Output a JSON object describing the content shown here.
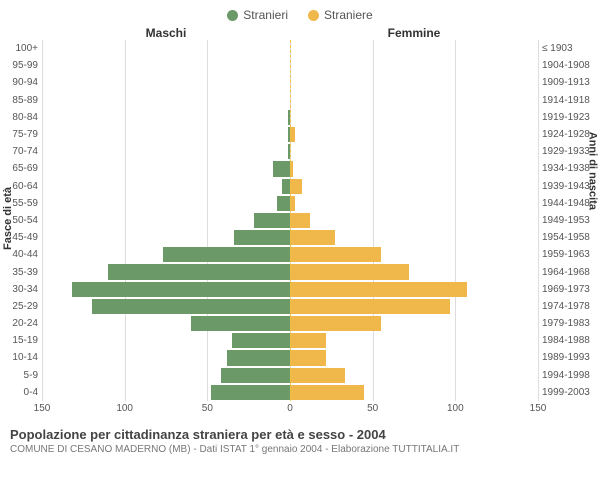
{
  "legend": {
    "male": {
      "label": "Stranieri",
      "color": "#6b9967"
    },
    "female": {
      "label": "Straniere",
      "color": "#f0b84a"
    }
  },
  "columns": {
    "left": "Maschi",
    "right": "Femmine"
  },
  "axes": {
    "left_label": "Fasce di età",
    "right_label": "Anni di nascita",
    "xlim_left": 150,
    "xlim_right": 150,
    "xticks_left": [
      150,
      100,
      50,
      0
    ],
    "xticks_right": [
      0,
      50,
      100,
      150
    ],
    "grid_color": "#dddddd",
    "center_line_color": "#ecc23f",
    "background_color": "#ffffff"
  },
  "chart": {
    "type": "population-pyramid",
    "bar_color_left": "#6b9967",
    "bar_color_right": "#f0b84a",
    "font_size_labels": 10
  },
  "rows": [
    {
      "age": "100+",
      "birth": "≤ 1903",
      "m": 0,
      "f": 0
    },
    {
      "age": "95-99",
      "birth": "1904-1908",
      "m": 0,
      "f": 0
    },
    {
      "age": "90-94",
      "birth": "1909-1913",
      "m": 0,
      "f": 0
    },
    {
      "age": "85-89",
      "birth": "1914-1918",
      "m": 0,
      "f": 0
    },
    {
      "age": "80-84",
      "birth": "1919-1923",
      "m": 1,
      "f": 0
    },
    {
      "age": "75-79",
      "birth": "1924-1928",
      "m": 1,
      "f": 3
    },
    {
      "age": "70-74",
      "birth": "1929-1933",
      "m": 1,
      "f": 0
    },
    {
      "age": "65-69",
      "birth": "1934-1938",
      "m": 10,
      "f": 2
    },
    {
      "age": "60-64",
      "birth": "1939-1943",
      "m": 5,
      "f": 7
    },
    {
      "age": "55-59",
      "birth": "1944-1948",
      "m": 8,
      "f": 3
    },
    {
      "age": "50-54",
      "birth": "1949-1953",
      "m": 22,
      "f": 12
    },
    {
      "age": "45-49",
      "birth": "1954-1958",
      "m": 34,
      "f": 27
    },
    {
      "age": "40-44",
      "birth": "1959-1963",
      "m": 77,
      "f": 55
    },
    {
      "age": "35-39",
      "birth": "1964-1968",
      "m": 110,
      "f": 72
    },
    {
      "age": "30-34",
      "birth": "1969-1973",
      "m": 132,
      "f": 107
    },
    {
      "age": "25-29",
      "birth": "1974-1978",
      "m": 120,
      "f": 97
    },
    {
      "age": "20-24",
      "birth": "1979-1983",
      "m": 60,
      "f": 55
    },
    {
      "age": "15-19",
      "birth": "1984-1988",
      "m": 35,
      "f": 22
    },
    {
      "age": "10-14",
      "birth": "1989-1993",
      "m": 38,
      "f": 22
    },
    {
      "age": "5-9",
      "birth": "1994-1998",
      "m": 42,
      "f": 33
    },
    {
      "age": "0-4",
      "birth": "1999-2003",
      "m": 48,
      "f": 45
    }
  ],
  "footer": {
    "title": "Popolazione per cittadinanza straniera per età e sesso - 2004",
    "subtitle": "COMUNE DI CESANO MADERNO (MB) - Dati ISTAT 1° gennaio 2004 - Elaborazione TUTTITALIA.IT"
  }
}
